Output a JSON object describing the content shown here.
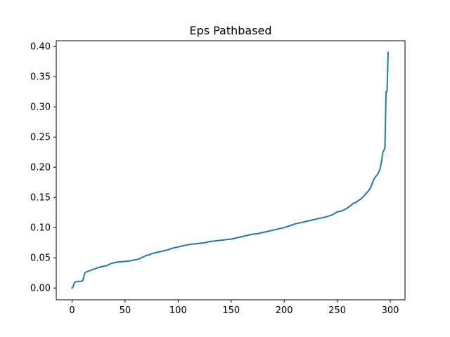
{
  "chart_data": {
    "type": "line",
    "title": "Eps Pathbased",
    "xlabel": "",
    "ylabel": "",
    "xlim": [
      -14.9,
      313.9
    ],
    "ylim": [
      -0.0195,
      0.4095
    ],
    "x_ticks": [
      0,
      50,
      100,
      150,
      200,
      250,
      300
    ],
    "x_tick_labels": [
      "0",
      "50",
      "100",
      "150",
      "200",
      "250",
      "300"
    ],
    "y_ticks": [
      0.0,
      0.05,
      0.1,
      0.15,
      0.2,
      0.25,
      0.3,
      0.35,
      0.4
    ],
    "y_tick_labels": [
      "0.00",
      "0.05",
      "0.10",
      "0.15",
      "0.20",
      "0.25",
      "0.30",
      "0.35",
      "0.40"
    ],
    "grid": false,
    "legend": "none",
    "line_color": "#1f77b4",
    "series": [
      {
        "x": [
          0,
          1,
          2,
          3,
          5,
          8,
          10,
          11,
          12,
          14,
          17,
          20,
          22,
          25,
          27,
          30,
          34,
          36,
          40,
          43,
          50,
          55,
          60,
          63,
          65,
          68,
          70,
          73,
          75,
          80,
          85,
          90,
          95,
          100,
          105,
          110,
          115,
          120,
          125,
          130,
          135,
          140,
          145,
          150,
          155,
          160,
          165,
          170,
          175,
          180,
          185,
          190,
          195,
          200,
          205,
          210,
          215,
          220,
          225,
          230,
          235,
          240,
          245,
          250,
          255,
          258,
          260,
          263,
          265,
          268,
          270,
          272,
          275,
          278,
          280,
          282,
          284,
          286,
          288,
          290,
          291,
          292,
          293,
          294,
          295,
          296,
          297,
          298
        ],
        "y": [
          0.0,
          0.002,
          0.008,
          0.01,
          0.011,
          0.011,
          0.012,
          0.018,
          0.025,
          0.027,
          0.029,
          0.031,
          0.032,
          0.034,
          0.035,
          0.036,
          0.038,
          0.04,
          0.042,
          0.043,
          0.044,
          0.045,
          0.047,
          0.048,
          0.05,
          0.052,
          0.054,
          0.055,
          0.057,
          0.059,
          0.061,
          0.063,
          0.066,
          0.068,
          0.07,
          0.072,
          0.073,
          0.074,
          0.075,
          0.077,
          0.078,
          0.079,
          0.08,
          0.081,
          0.083,
          0.085,
          0.087,
          0.089,
          0.09,
          0.092,
          0.094,
          0.096,
          0.098,
          0.1,
          0.103,
          0.106,
          0.108,
          0.11,
          0.112,
          0.114,
          0.116,
          0.118,
          0.121,
          0.126,
          0.128,
          0.131,
          0.133,
          0.137,
          0.14,
          0.142,
          0.145,
          0.147,
          0.152,
          0.158,
          0.162,
          0.168,
          0.178,
          0.184,
          0.188,
          0.195,
          0.203,
          0.212,
          0.225,
          0.228,
          0.232,
          0.324,
          0.326,
          0.39
        ]
      }
    ]
  }
}
